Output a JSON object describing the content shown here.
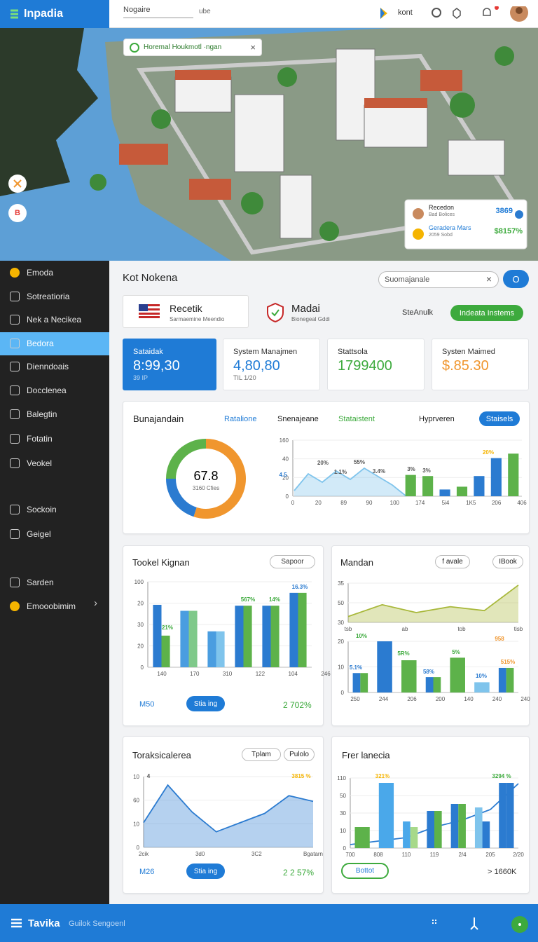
{
  "topbar": {
    "logo": "Inpadia",
    "search": "Nogaire",
    "search_hint": "ube",
    "user": "kont"
  },
  "hero": {
    "toast": "Horemal Houkmotl ·ngan",
    "button": "B",
    "card": [
      {
        "name": "Recedon",
        "sub": "Bad Bolices",
        "value": "3869"
      },
      {
        "name": "Geradera Mars",
        "sub": "2059 Sobd",
        "value": "$8157%"
      }
    ]
  },
  "sidebar": {
    "active": 3,
    "items": [
      "Emoda",
      "Sotreatioria",
      "Nek a Necikea",
      "Bedora",
      "Dienndoais",
      "Docclenea",
      "Balegtin",
      "Fotatin",
      "Veokel",
      "Sockoin",
      "Geigel",
      "Sarden",
      "Emooobimim"
    ]
  },
  "header": {
    "title": "Kot Nokena",
    "search": "Suomajanale",
    "button": "O"
  },
  "info": {
    "card1": {
      "title": "Recetik",
      "sub": "Sarmaemine Meendio"
    },
    "card2": {
      "title": "Madai",
      "sub": "Bionegeal Gddi"
    },
    "link": "SteAnulk",
    "button": "Indeata Instems"
  },
  "stats": [
    {
      "label": "Sataidak",
      "value": "8:99,30",
      "sub": "39 IP"
    },
    {
      "label": "System Manajmen",
      "value": "4,80,80",
      "sub": "TIL 1/20"
    },
    {
      "label": "Stattsola",
      "value": "1799400"
    },
    {
      "label": "Systen Maimed",
      "value": "$.85.30"
    }
  ],
  "overview": {
    "title": "Bunajandain",
    "tabs": [
      "Ratalione",
      "Snenajeane",
      "Stataistent",
      "Hyprveren"
    ],
    "button": "Staisels",
    "donut": {
      "center": "67.8",
      "sub": "3160 Cfies",
      "segments": [
        {
          "value": 55,
          "color": "#f0962e"
        },
        {
          "value": 20,
          "color": "#2b7bd0"
        },
        {
          "value": 25,
          "color": "#5db24a"
        }
      ]
    },
    "chart": {
      "ylim": [
        0,
        100
      ],
      "y_labels": [
        "160",
        "40",
        "20",
        "0"
      ],
      "x_labels": [
        "0",
        "20",
        "89",
        "90",
        "100",
        "174",
        "5i4",
        "1K5",
        "206",
        "406"
      ],
      "line": {
        "values": [
          10,
          40,
          25,
          45,
          30,
          50,
          35,
          20,
          0
        ],
        "color": "#7fc4ec",
        "fill": true
      },
      "bars": [
        [
          {
            "value": 38,
            "color": "#5db24a"
          }
        ],
        [
          {
            "value": 36,
            "color": "#5db24a"
          }
        ],
        [
          {
            "value": 12,
            "color": "#2b7bd0"
          }
        ],
        [
          {
            "value": 17,
            "color": "#5db24a"
          }
        ],
        [
          {
            "value": 36,
            "color": "#2b7bd0"
          }
        ],
        [
          {
            "value": 68,
            "color": "#2b7bd0"
          }
        ],
        [
          {
            "value": 76,
            "color": "#5db24a"
          }
        ]
      ],
      "annotations": [
        "4.5",
        "20%",
        "1.1%",
        "55%",
        "3.4%",
        "3%",
        "3%",
        "20%"
      ]
    }
  },
  "panel1": {
    "title": "Tookel Kignan",
    "button": "Sapoor",
    "footer_left": "M50",
    "footer_button": "Stia ing",
    "footer_right": "2 702%",
    "chart": {
      "ylim": [
        0,
        100
      ],
      "y_labels": [
        "100",
        "20",
        "30",
        "20",
        "0"
      ],
      "x_labels": [
        "140",
        "170",
        "310",
        "122",
        "104",
        "246"
      ],
      "bars": [
        [
          {
            "value": 73,
            "color": "#2b7bd0"
          },
          {
            "value": 37,
            "color": "#5db24a"
          }
        ],
        [
          {
            "value": 66,
            "color": "#4a9de0"
          },
          {
            "value": 66,
            "color": "#7fc98a"
          }
        ],
        [
          {
            "value": 42,
            "color": "#4a9de0"
          },
          {
            "value": 42,
            "color": "#7fc4ec"
          }
        ],
        [
          {
            "value": 72,
            "color": "#2b7bd0"
          },
          {
            "value": 72,
            "color": "#5db24a"
          }
        ],
        [
          {
            "value": 72,
            "color": "#2b7bd0"
          },
          {
            "value": 72,
            "color": "#5db24a"
          }
        ],
        [
          {
            "value": 87,
            "color": "#2b7bd0"
          },
          {
            "value": 87,
            "color": "#5db24a"
          }
        ]
      ],
      "annotations": [
        "21%",
        "567%",
        "14%",
        "16.3%"
      ]
    }
  },
  "panel2": {
    "title": "Mandan",
    "buttons": [
      "f avale",
      "IBook"
    ],
    "line_chart": {
      "ylim": [
        0,
        100
      ],
      "y_labels": [
        "35",
        "50",
        "30"
      ],
      "x_labels": [
        "tsb",
        "ab",
        "tob",
        "tisb"
      ],
      "line": {
        "values": [
          15,
          45,
          25,
          40,
          30,
          95
        ],
        "color": "#a8b83a",
        "fill": true
      }
    },
    "bar_chart": {
      "ylim": [
        0,
        100
      ],
      "y_labels": [
        "20",
        "10",
        "0"
      ],
      "x_labels": [
        "250",
        "244",
        "206",
        "200",
        "140",
        "240",
        "240"
      ],
      "bars": [
        [
          {
            "value": 38,
            "color": "#2b7bd0"
          },
          {
            "value": 38,
            "color": "#5db24a"
          }
        ],
        [
          {
            "value": 100,
            "color": "#2b7bd0"
          }
        ],
        [
          {
            "value": 63,
            "color": "#5db24a"
          }
        ],
        [
          {
            "value": 30,
            "color": "#2b7bd0"
          },
          {
            "value": 30,
            "color": "#5db24a"
          }
        ],
        [
          {
            "value": 68,
            "color": "#5db24a"
          }
        ],
        [
          {
            "value": 20,
            "color": "#7fc4ec"
          }
        ],
        [
          {
            "value": 48,
            "color": "#2b7bd0"
          },
          {
            "value": 48,
            "color": "#5db24a"
          }
        ]
      ],
      "annotations": [
        "5.1%",
        "10%",
        "5R%",
        "58%",
        "5%",
        "10%",
        "515%",
        "958"
      ]
    }
  },
  "panel3": {
    "title": "Toraksicalerea",
    "buttons": [
      "Tplam",
      "Pulolo"
    ],
    "footer_left": "M26",
    "footer_button": "Stia ing",
    "footer_right": "2 2 57%",
    "chart": {
      "ylim": [
        0,
        100
      ],
      "y_labels": [
        "10",
        "60",
        "10",
        "0"
      ],
      "x_labels": [
        "2cik",
        "3d0",
        "3C2",
        "Bgatarn"
      ],
      "line": {
        "values": [
          35,
          88,
          50,
          22,
          35,
          48,
          73,
          65
        ],
        "color": "#2b7bd0",
        "fill": true
      },
      "annotations": [
        "4",
        "3815 %"
      ]
    }
  },
  "panel4": {
    "title": "Frer lanecia",
    "footer_button": "Bottot",
    "footer_right": "> 1660K",
    "chart": {
      "ylim": [
        0,
        100
      ],
      "y_labels": [
        "110",
        "50",
        "30",
        "10",
        "0"
      ],
      "x_labels": [
        "700",
        "808",
        "110",
        "119",
        "2/4",
        "205",
        "2/20"
      ],
      "bars": [
        [
          {
            "value": 30,
            "color": "#5db24a"
          }
        ],
        [
          {
            "value": 93,
            "color": "#4aa8ea"
          }
        ],
        [
          {
            "value": 38,
            "color": "#4aa8ea"
          },
          {
            "value": 30,
            "color": "#a7d98a"
          }
        ],
        [
          {
            "value": 53,
            "color": "#2b7bd0"
          },
          {
            "value": 53,
            "color": "#5db24a"
          }
        ],
        [
          {
            "value": 63,
            "color": "#2b7bd0"
          },
          {
            "value": 63,
            "color": "#5db24a"
          }
        ],
        [
          {
            "value": 58,
            "color": "#7fc4ec"
          },
          {
            "value": 38,
            "color": "#2b7bd0"
          }
        ],
        [
          {
            "value": 93,
            "color": "#2b7bd0"
          },
          {
            "value": 93,
            "color": "#2b7bd0"
          }
        ]
      ],
      "line": {
        "values": [
          5,
          10,
          15,
          30,
          40,
          55,
          92
        ],
        "color": "#2b7bd0",
        "fill": false
      },
      "annotations": [
        "321%",
        "3294 %"
      ]
    }
  },
  "footer": {
    "brand": "Tavika",
    "text": "Guilok Sengoenl"
  }
}
